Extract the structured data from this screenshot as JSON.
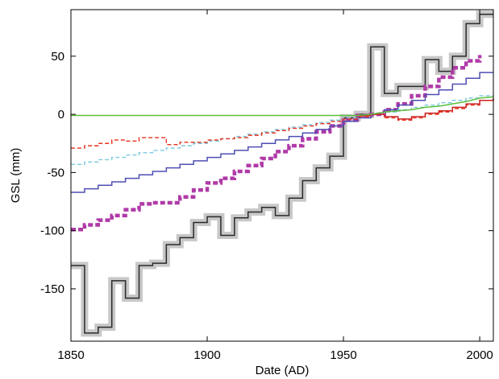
{
  "chart_data": {
    "type": "line",
    "xlabel": "Date (AD)",
    "ylabel": "GSL (mm)",
    "xlim": [
      1850,
      2005
    ],
    "ylim": [
      -195,
      90
    ],
    "xticks": [
      1850,
      1900,
      1950,
      2000
    ],
    "yticks": [
      -150,
      -100,
      -50,
      0,
      50
    ],
    "grid": false,
    "series": [
      {
        "color": "#2a2a2a",
        "style": "step",
        "band_color": "#c8c8c8",
        "x": [
          1850,
          1855,
          1860,
          1865,
          1870,
          1875,
          1880,
          1885,
          1890,
          1895,
          1900,
          1905,
          1910,
          1915,
          1920,
          1925,
          1930,
          1935,
          1940,
          1945,
          1950,
          1955,
          1960,
          1965,
          1970,
          1975,
          1980,
          1985,
          1990,
          1995,
          2000,
          2005
        ],
        "y": [
          -130,
          -188,
          -183,
          -143,
          -158,
          -130,
          -128,
          -112,
          -106,
          -93,
          -88,
          -104,
          -89,
          -84,
          -80,
          -87,
          -72,
          -57,
          -46,
          -36,
          -3,
          0,
          58,
          18,
          24,
          24,
          47,
          37,
          50,
          78,
          86,
          86
        ]
      },
      {
        "color": "#b03aa8",
        "style": "thick-dashed",
        "x": [
          1850,
          1855,
          1860,
          1865,
          1870,
          1875,
          1880,
          1885,
          1890,
          1895,
          1900,
          1905,
          1910,
          1915,
          1920,
          1925,
          1930,
          1935,
          1940,
          1945,
          1950,
          1955,
          1960,
          1965,
          1970,
          1975,
          1980,
          1985,
          1990,
          1995,
          2000
        ],
        "y": [
          -99,
          -95,
          -91,
          -87,
          -82,
          -77,
          -76,
          -76,
          -71,
          -65,
          -59,
          -55,
          -49,
          -44,
          -38,
          -32,
          -27,
          -21,
          -15,
          -10,
          -5,
          -1,
          0,
          4,
          9,
          16,
          24,
          32,
          40,
          46,
          51
        ]
      },
      {
        "color": "#4e4eb4",
        "style": "step",
        "x": [
          1850,
          1855,
          1860,
          1865,
          1870,
          1875,
          1880,
          1885,
          1890,
          1895,
          1900,
          1905,
          1910,
          1915,
          1920,
          1925,
          1930,
          1935,
          1940,
          1945,
          1950,
          1955,
          1960,
          1965,
          1970,
          1975,
          1980,
          1985,
          1990,
          1995,
          2000,
          2005
        ],
        "y": [
          -67,
          -64,
          -61,
          -58,
          -55,
          -52,
          -49,
          -46,
          -43,
          -40,
          -37,
          -34,
          -31,
          -28,
          -25,
          -22,
          -19,
          -16,
          -13,
          -10,
          -6,
          -3,
          0,
          4,
          8,
          12,
          17,
          21,
          26,
          31,
          36,
          36
        ]
      },
      {
        "color": "#7ec8e0",
        "style": "dashed",
        "x": [
          1850,
          1855,
          1860,
          1865,
          1870,
          1875,
          1880,
          1885,
          1890,
          1895,
          1900,
          1905,
          1910,
          1915,
          1920,
          1925,
          1930,
          1935,
          1940,
          1945,
          1950,
          1955,
          1960,
          1965,
          1970,
          1975,
          1980,
          1985,
          1990,
          1995,
          2000,
          2005
        ],
        "y": [
          -43,
          -41,
          -39,
          -37,
          -35,
          -33,
          -31,
          -29,
          -27,
          -25,
          -23,
          -21,
          -19,
          -17,
          -15,
          -13,
          -11,
          -9,
          -7,
          -5,
          -3,
          -1,
          0,
          2,
          4,
          6,
          8,
          10,
          12,
          14,
          16,
          16
        ]
      },
      {
        "color": "#e8301c",
        "style": "dashed",
        "x": [
          1850,
          1855,
          1860,
          1865,
          1870,
          1875,
          1880,
          1885,
          1890,
          1895,
          1900,
          1905,
          1910,
          1915,
          1920,
          1925,
          1930,
          1935,
          1940,
          1945,
          1950,
          1955,
          1960,
          1965,
          1970,
          1975,
          1980,
          1985,
          1990,
          1995,
          2000,
          2005
        ],
        "y": [
          -29,
          -27,
          -25,
          -22,
          -23,
          -20,
          -20,
          -26,
          -24,
          -24,
          -22,
          -21,
          -20,
          -18,
          -16,
          -14,
          -12,
          -10,
          -8,
          -6,
          -4,
          -2,
          0,
          -3,
          -5,
          -3,
          0,
          2,
          5,
          8,
          12,
          14
        ]
      },
      {
        "color": "#cc2222",
        "style": "step",
        "x": [
          1955,
          1960,
          1965,
          1970,
          1975,
          1980,
          1985,
          1990,
          1995,
          2000,
          2005
        ],
        "y": [
          -1,
          0,
          -2,
          -4,
          -2,
          1,
          3,
          6,
          9,
          12,
          13
        ]
      },
      {
        "color": "#5cbf3c",
        "style": "solid",
        "x": [
          1850,
          1950,
          1955,
          1960,
          1965,
          1970,
          1975,
          1980,
          1985,
          1990,
          1995,
          2000,
          2005
        ],
        "y": [
          -1,
          -1,
          -1,
          0,
          2,
          3,
          4,
          6,
          7,
          9,
          11,
          14,
          15
        ]
      }
    ]
  }
}
